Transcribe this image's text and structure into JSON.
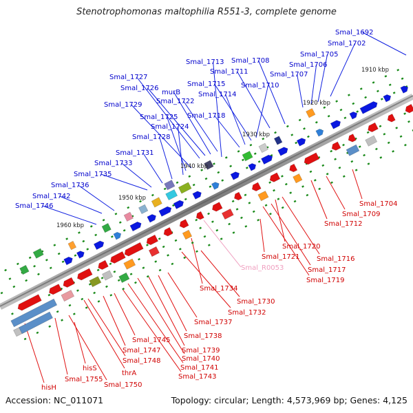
{
  "title": "Stenotrophomonas maltophilia R551-3, complete genome",
  "accession": "Accession: NC_011071",
  "summary": "Topology: circular; Length: 4,573,969 bp; Genes: 4,125",
  "colors": {
    "backbone": "#8c8c8c",
    "forward_label": "#0000cc",
    "reverse_label": "#d00000",
    "rna_label": "#f0a0c0",
    "tick": "#1a8a1a"
  },
  "kbp_markers": [
    "1910 kbp",
    "1920 kbp",
    "1930 kbp",
    "1940 kbp",
    "1950 kbp",
    "1960 kbp"
  ],
  "forward_labels": [
    "Smal_1692",
    "Smal_1702",
    "Smal_1705",
    "Smal_1706",
    "Smal_1707",
    "Smal_1708",
    "Smal_1713",
    "Smal_1711",
    "Smal_1710",
    "Smal_1715",
    "Smal_1714",
    "Smal_1727",
    "Smal_1726",
    "murB",
    "Smal_1722",
    "Smal_1729",
    "Smal_1718",
    "Smal_1725",
    "Smal_1724",
    "Smal_1728",
    "Smal_1731",
    "Smal_1733",
    "Smal_1735",
    "Smal_1736",
    "Smal_1742",
    "Smal_1746"
  ],
  "reverse_labels": [
    "Smal_1704",
    "Smal_1709",
    "Smal_1712",
    "Smal_1720",
    "Smal_1716",
    "Smal_1721",
    "Smal_1717",
    "Smal_1719",
    "Smal_1734",
    "Smal_1730",
    "Smal_1732",
    "Smal_1737",
    "Smal_1738",
    "Smal_1745",
    "Smal_1739",
    "Smal_1747",
    "Smal_1740",
    "Smal_1748",
    "Smal_1741",
    "thrA",
    "Smal_1743",
    "hisS",
    "Smal_1755",
    "Smal_1750",
    "hisH"
  ],
  "rna_labels": [
    "Smal_R0053"
  ]
}
